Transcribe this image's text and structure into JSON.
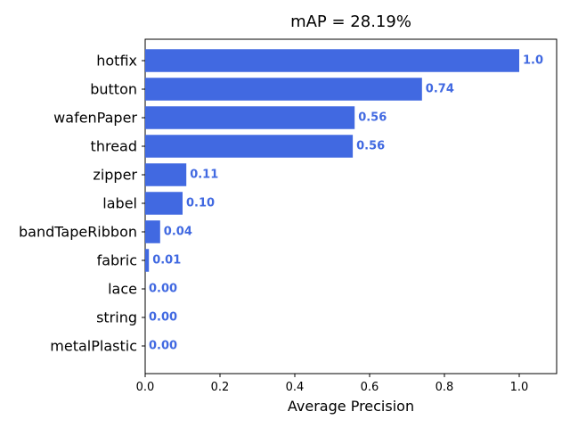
{
  "chart_data": {
    "type": "bar",
    "orientation": "horizontal",
    "title": "mAP = 28.19%",
    "xlabel": "Average Precision",
    "ylabel": "",
    "xlim": [
      0,
      1.1
    ],
    "xticks": [
      "0.0",
      "0.2",
      "0.4",
      "0.6",
      "0.8",
      "1.0"
    ],
    "grid": false,
    "bar_color": "#4169e1",
    "label_color": "#4169e1",
    "categories": [
      "hotfix",
      "button",
      "wafenPaper",
      "thread",
      "zipper",
      "label",
      "bandTapeRibbon",
      "fabric",
      "lace",
      "string",
      "metalPlastic"
    ],
    "values": [
      1.0,
      0.74,
      0.56,
      0.555,
      0.11,
      0.1,
      0.04,
      0.01,
      0.0,
      0.0,
      0.0
    ],
    "value_labels": [
      "1.0",
      "0.74",
      "0.56",
      "0.56",
      "0.11",
      "0.10",
      "0.04",
      "0.01",
      "0.00",
      "0.00",
      "0.00"
    ]
  }
}
